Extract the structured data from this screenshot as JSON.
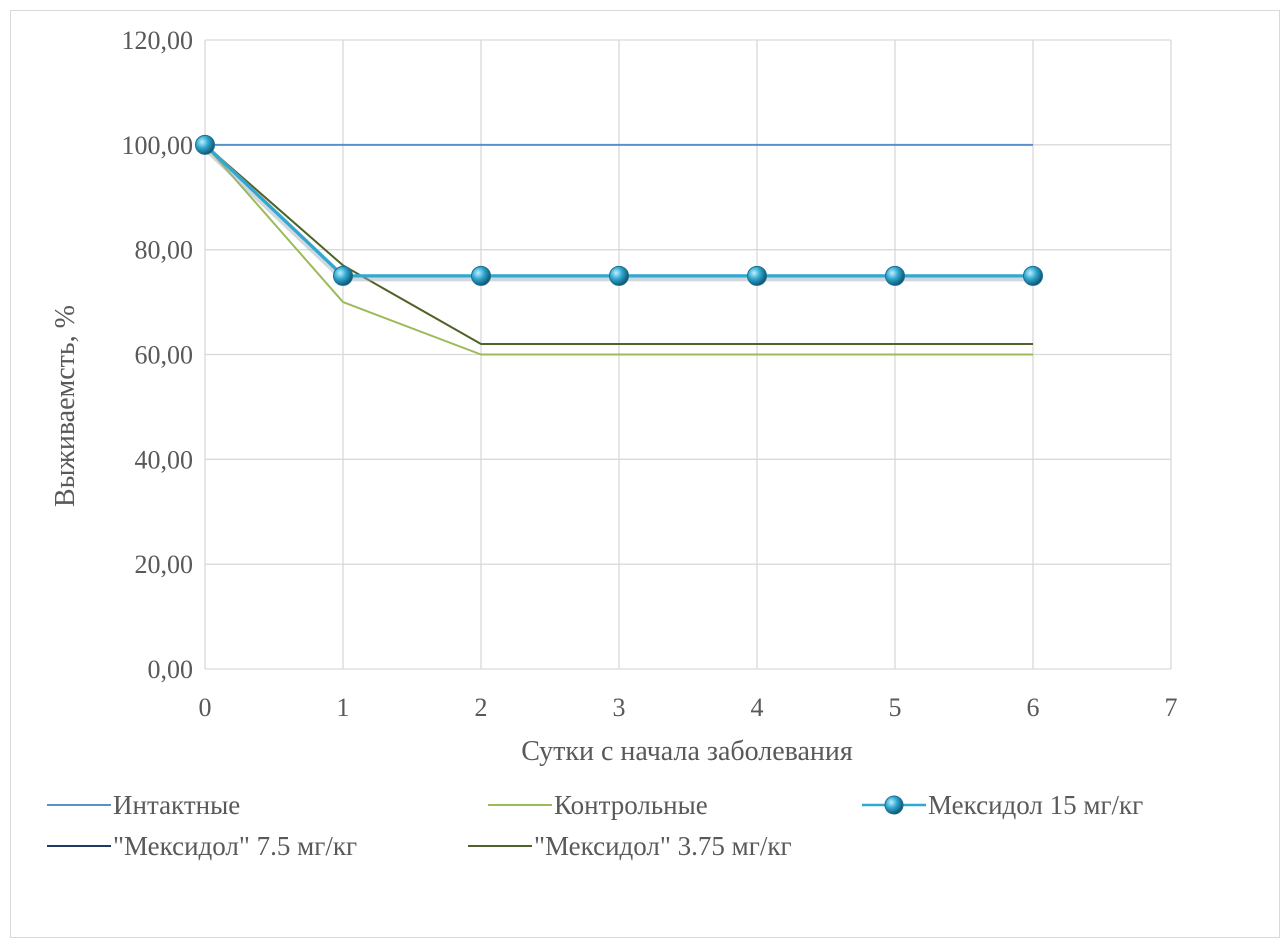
{
  "chart_data": {
    "type": "line",
    "title": "",
    "xlabel": "Сутки с начала заболевания",
    "ylabel": "Выживаемсть, %",
    "x": [
      0,
      1,
      2,
      3,
      4,
      5,
      6
    ],
    "xlim": [
      0,
      7
    ],
    "ylim": [
      0,
      120
    ],
    "x_ticks": [
      "0",
      "1",
      "2",
      "3",
      "4",
      "5",
      "6",
      "7"
    ],
    "y_ticks": [
      "0,00",
      "20,00",
      "40,00",
      "60,00",
      "80,00",
      "100,00",
      "120,00"
    ],
    "grid": true,
    "legend_position": "bottom",
    "series": [
      {
        "name": "Интактные",
        "values": [
          100,
          100,
          100,
          100,
          100,
          100,
          100
        ],
        "color": "#5b8fc9",
        "markers": false
      },
      {
        "name": "Контрольные",
        "values": [
          100,
          70,
          60,
          60,
          60,
          60,
          60
        ],
        "color": "#9bbb59",
        "markers": false
      },
      {
        "name": "Мексидол 15 мг/кг",
        "values": [
          100,
          75,
          75,
          75,
          75,
          75,
          75
        ],
        "color": "#31a8d0",
        "markers": true
      },
      {
        "name": "\"Мексидол\" 7.5 мг/кг",
        "values": [
          100,
          75,
          75,
          75,
          75,
          75,
          75
        ],
        "color": "#1f3864",
        "markers": false
      },
      {
        "name": "\"Мексидол\" 3.75 мг/кг",
        "values": [
          100,
          77,
          62,
          62,
          62,
          62,
          62
        ],
        "color": "#4f6228",
        "markers": false
      }
    ]
  }
}
